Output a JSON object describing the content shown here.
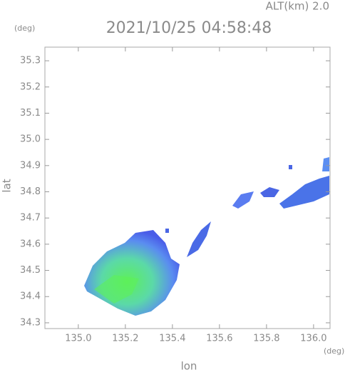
{
  "chart_data": {
    "type": "radar-image",
    "title": "2021/10/25 04:58:48",
    "altitude_label": "ALT(km) 2.0",
    "x_unit": "(deg)",
    "y_unit": "(deg)",
    "xlabel": "lon",
    "ylabel": "lat",
    "xlim": [
      134.858,
      136.07
    ],
    "ylim": [
      34.278,
      35.352
    ],
    "xticks": [
      {
        "value": 135,
        "label": "135.0"
      },
      135.2,
      135.4,
      135.6,
      135.8,
      {
        "value": 136,
        "label": "136.0"
      }
    ],
    "yticks": [
      34.3,
      34.4,
      34.5,
      34.6,
      34.7,
      34.8,
      34.9,
      {
        "value": 35,
        "label": "35.0"
      },
      35.1,
      35.2,
      35.3
    ]
  }
}
